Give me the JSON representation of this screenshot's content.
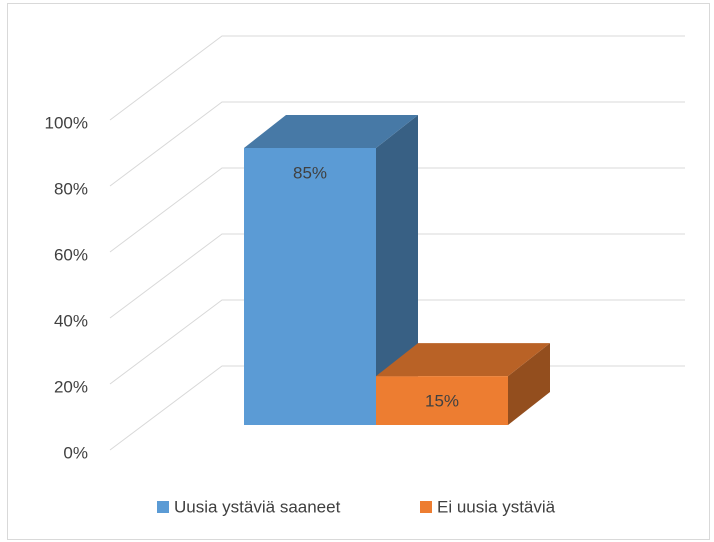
{
  "chart_data": {
    "type": "bar3d",
    "categories": [
      null
    ],
    "series": [
      {
        "name": "Uusia ystäviä saaneet",
        "color": "#5b9bd5",
        "values": [
          85
        ],
        "value_labels": [
          "85%"
        ]
      },
      {
        "name": "Ei uusia ystäviä",
        "color": "#ed7d31",
        "values": [
          15
        ],
        "value_labels": [
          "15%"
        ]
      }
    ],
    "ylim": [
      0,
      100
    ],
    "yticks": [
      {
        "value": 0,
        "label": "0%"
      },
      {
        "value": 20,
        "label": "20%"
      },
      {
        "value": 40,
        "label": "40%"
      },
      {
        "value": 60,
        "label": "60%"
      },
      {
        "value": 80,
        "label": "80%"
      },
      {
        "value": 100,
        "label": "100%"
      }
    ],
    "grid": true,
    "legend": "bottom"
  }
}
